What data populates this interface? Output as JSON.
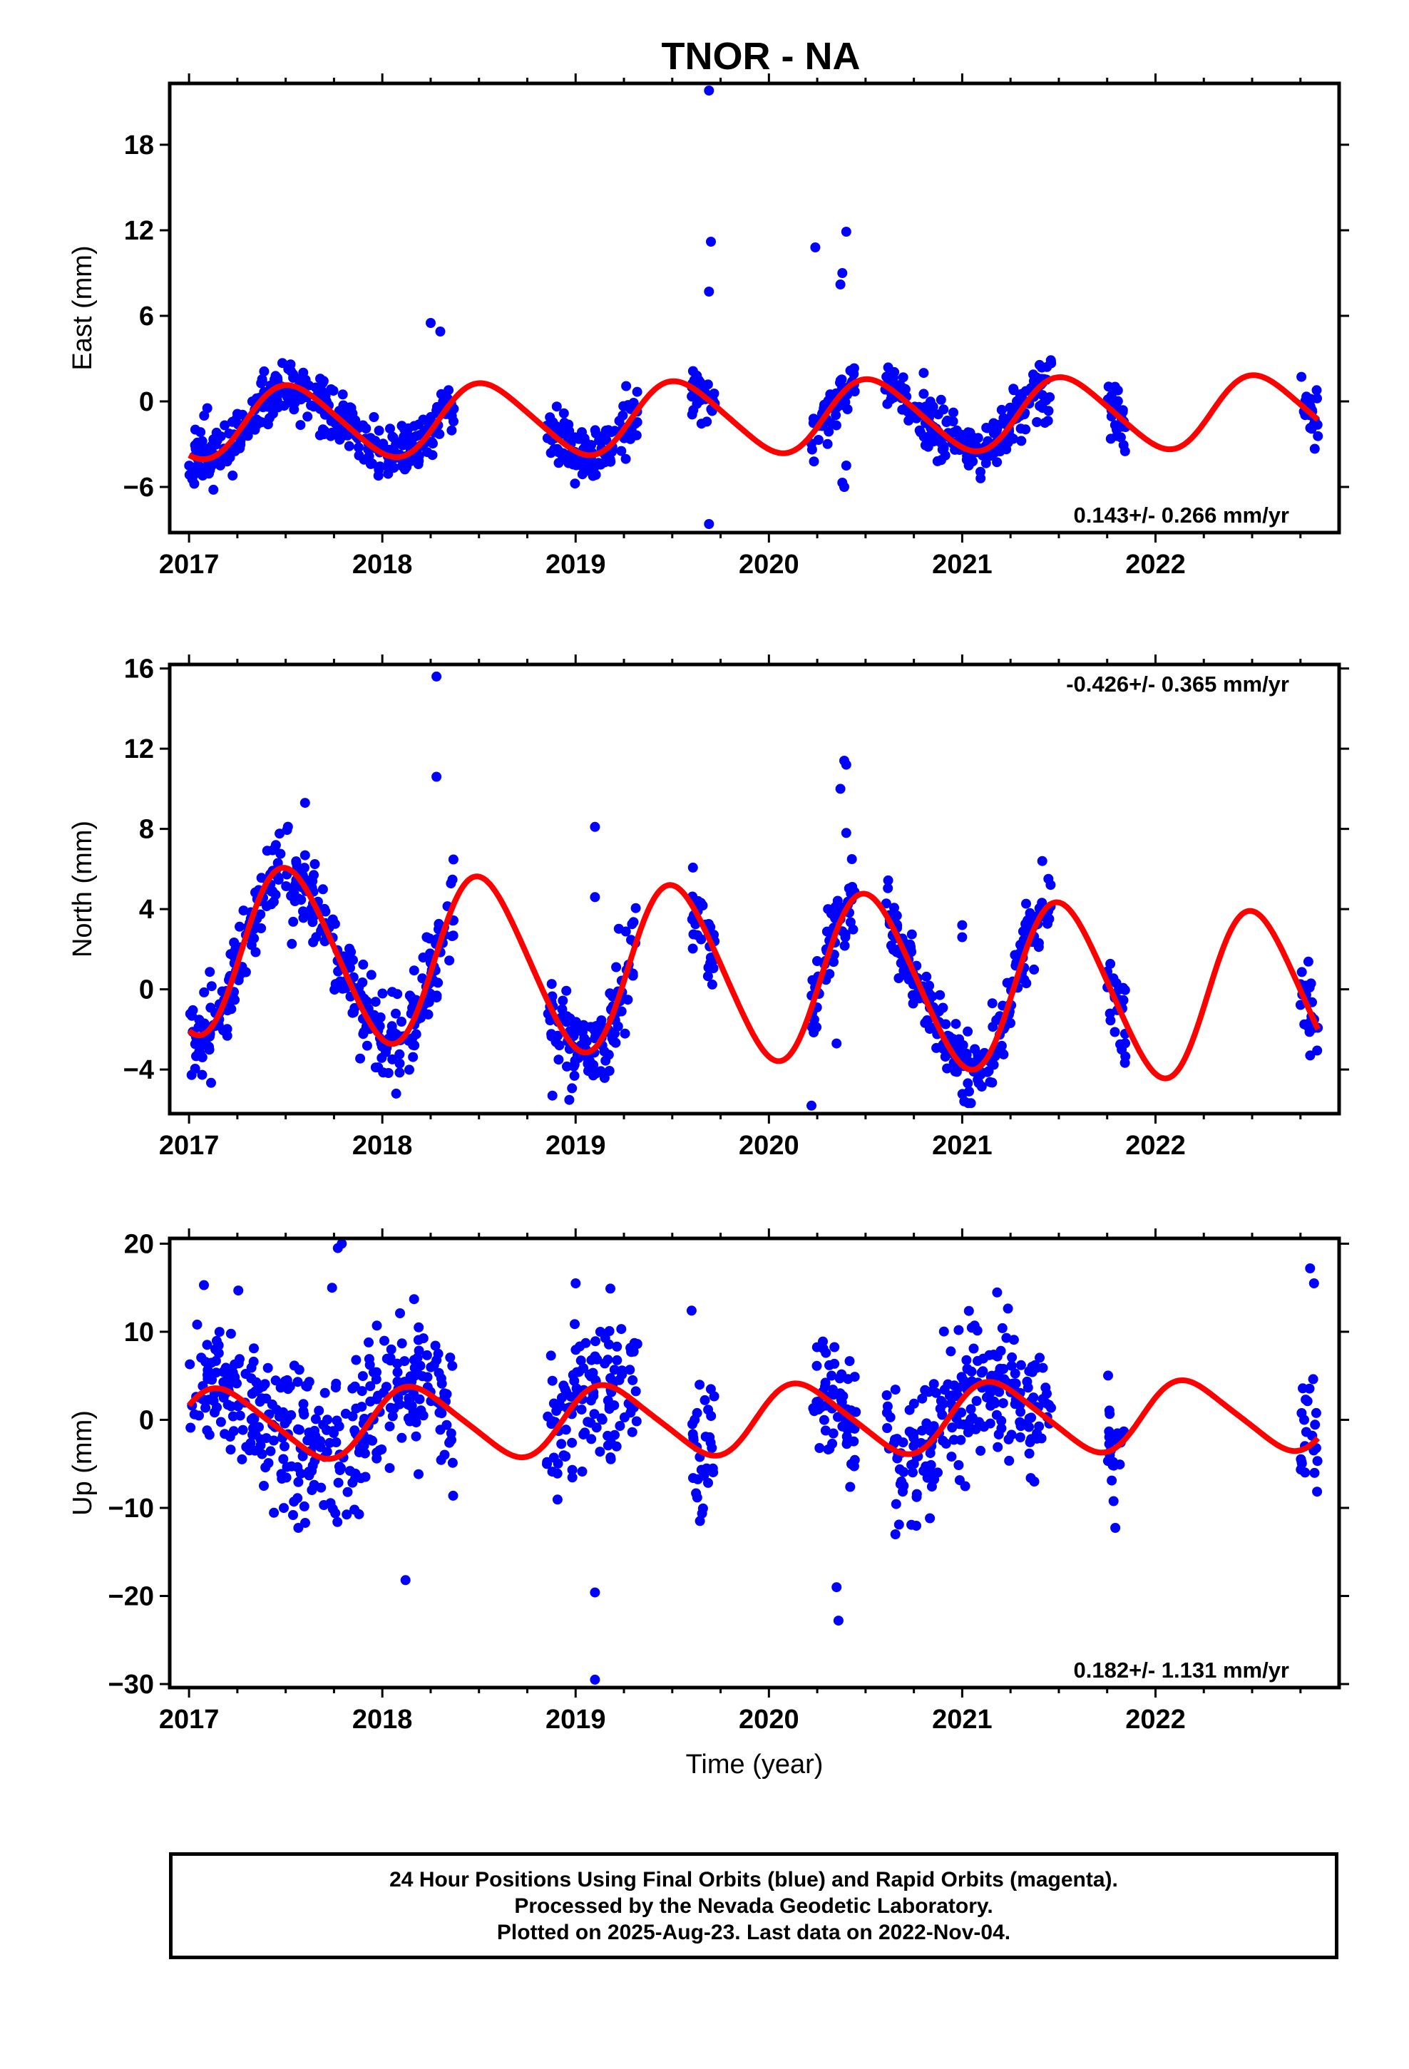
{
  "title": "TNOR - NA",
  "footer": {
    "line1": "24 Hour Positions Using Final Orbits (blue) and Rapid Orbits (magenta).",
    "line2": "Processed by the Nevada Geodetic Laboratory.",
    "line3": "Plotted on 2025-Aug-23. Last data on 2022-Nov-04."
  },
  "colors": {
    "points": "#0000ff",
    "model": "#ff0000",
    "frame": "#000000"
  },
  "chart_data": [
    {
      "type": "scatter",
      "title": "TNOR - NA",
      "ylabel": "East (mm)",
      "xlabel": "",
      "xlim": [
        2016.9,
        2022.95
      ],
      "ylim": [
        -9.2,
        22.3
      ],
      "yticks": [
        -6,
        0,
        6,
        12,
        18
      ],
      "xticks": [
        2017,
        2018,
        2019,
        2020,
        2021,
        2022
      ],
      "rate": "0.143+/- 0.266 mm/yr",
      "rate_position": "bottom-right",
      "grid": false,
      "data_windows": [
        [
          2017.0,
          2018.37
        ],
        [
          2018.85,
          2019.32
        ],
        [
          2019.6,
          2019.72
        ],
        [
          2020.22,
          2020.45
        ],
        [
          2020.6,
          2021.46
        ],
        [
          2021.75,
          2021.85
        ],
        [
          2022.75,
          2022.84
        ]
      ],
      "series": [
        {
          "name": "Final Orbits",
          "trend": [
            -1.5,
            0.14
          ],
          "annual_amp": 2.5,
          "phase": 0.29,
          "semiannual_amp": 0.3,
          "scatter": 1.0,
          "seed": 11,
          "outliers": [
            [
              2019.69,
              21.8
            ],
            [
              2019.7,
              11.2
            ],
            [
              2019.69,
              7.7
            ],
            [
              2019.69,
              -8.6
            ],
            [
              2020.24,
              10.8
            ],
            [
              2020.38,
              9.0
            ],
            [
              2020.37,
              8.2
            ],
            [
              2020.4,
              11.9
            ],
            [
              2020.38,
              -5.7
            ],
            [
              2020.4,
              -4.5
            ],
            [
              2020.39,
              -6.0
            ],
            [
              2018.25,
              5.5
            ],
            [
              2018.3,
              4.9
            ]
          ]
        }
      ],
      "model": {
        "name": "Fit",
        "trend": [
          -1.5,
          0.14
        ],
        "annual_amp": 2.5,
        "phase": 0.29,
        "semiannual_amp": 0.3
      }
    },
    {
      "type": "scatter",
      "ylabel": "North (mm)",
      "xlabel": "",
      "xlim": [
        2016.9,
        2022.95
      ],
      "ylim": [
        -6.2,
        16.2
      ],
      "yticks": [
        -4,
        0,
        4,
        8,
        12,
        16
      ],
      "xticks": [
        2017,
        2018,
        2019,
        2020,
        2021,
        2022
      ],
      "rate": "-0.426+/- 0.365 mm/yr",
      "rate_position": "top-right",
      "grid": false,
      "data_windows": [
        [
          2017.0,
          2018.37
        ],
        [
          2018.85,
          2019.32
        ],
        [
          2019.6,
          2019.72
        ],
        [
          2020.22,
          2020.45
        ],
        [
          2020.6,
          2021.46
        ],
        [
          2021.75,
          2021.85
        ],
        [
          2022.75,
          2022.84
        ]
      ],
      "series": [
        {
          "name": "Final Orbits",
          "trend": [
            2.0,
            -0.43
          ],
          "annual_amp": 4.2,
          "phase": 0.27,
          "semiannual_amp": 0.4,
          "scatter": 1.0,
          "seed": 23,
          "outliers": [
            [
              2018.28,
              15.6
            ],
            [
              2018.28,
              10.6
            ],
            [
              2019.1,
              8.1
            ],
            [
              2019.1,
              4.6
            ],
            [
              2020.37,
              10.0
            ],
            [
              2020.39,
              11.4
            ],
            [
              2020.4,
              11.2
            ],
            [
              2020.4,
              7.8
            ],
            [
              2020.22,
              -5.8
            ],
            [
              2020.35,
              -2.7
            ],
            [
              2018.88,
              -5.3
            ],
            [
              2021.0,
              3.2
            ],
            [
              2021.0,
              2.6
            ],
            [
              2017.6,
              9.3
            ]
          ]
        }
      ],
      "model": {
        "name": "Fit",
        "trend": [
          2.0,
          -0.43
        ],
        "annual_amp": 4.2,
        "phase": 0.27,
        "semiannual_amp": 0.4
      }
    },
    {
      "type": "scatter",
      "ylabel": "Up (mm)",
      "xlabel": "Time (year)",
      "xlim": [
        2016.9,
        2022.95
      ],
      "ylim": [
        -30.4,
        20.6
      ],
      "yticks": [
        -30,
        -20,
        -10,
        0,
        10,
        20
      ],
      "xticks": [
        2017,
        2018,
        2019,
        2020,
        2021,
        2022
      ],
      "rate": "0.182+/- 1.131 mm/yr",
      "rate_position": "bottom-right",
      "grid": false,
      "data_windows": [
        [
          2017.0,
          2018.37
        ],
        [
          2018.85,
          2019.32
        ],
        [
          2019.6,
          2019.72
        ],
        [
          2020.22,
          2020.45
        ],
        [
          2020.6,
          2021.46
        ],
        [
          2021.75,
          2021.85
        ],
        [
          2022.75,
          2022.84
        ]
      ],
      "series": [
        {
          "name": "Final Orbits",
          "trend": [
            -0.5,
            0.18
          ],
          "annual_amp": 3.9,
          "phase": 0.93,
          "semiannual_amp": 0.6,
          "scatter": 4.0,
          "seed": 37,
          "outliers": [
            [
              2017.79,
              20.0
            ],
            [
              2017.77,
              19.5
            ],
            [
              2017.74,
              15.0
            ],
            [
              2019.0,
              15.5
            ],
            [
              2019.1,
              -19.6
            ],
            [
              2019.1,
              -29.5
            ],
            [
              2019.6,
              12.4
            ],
            [
              2020.36,
              -22.8
            ],
            [
              2020.35,
              -19.0
            ],
            [
              2018.12,
              -18.2
            ],
            [
              2022.8,
              17.2
            ],
            [
              2022.82,
              15.5
            ]
          ]
        }
      ],
      "model": {
        "name": "Fit",
        "trend": [
          -0.5,
          0.18
        ],
        "annual_amp": 3.9,
        "phase": 0.93,
        "semiannual_amp": 0.6
      }
    }
  ]
}
